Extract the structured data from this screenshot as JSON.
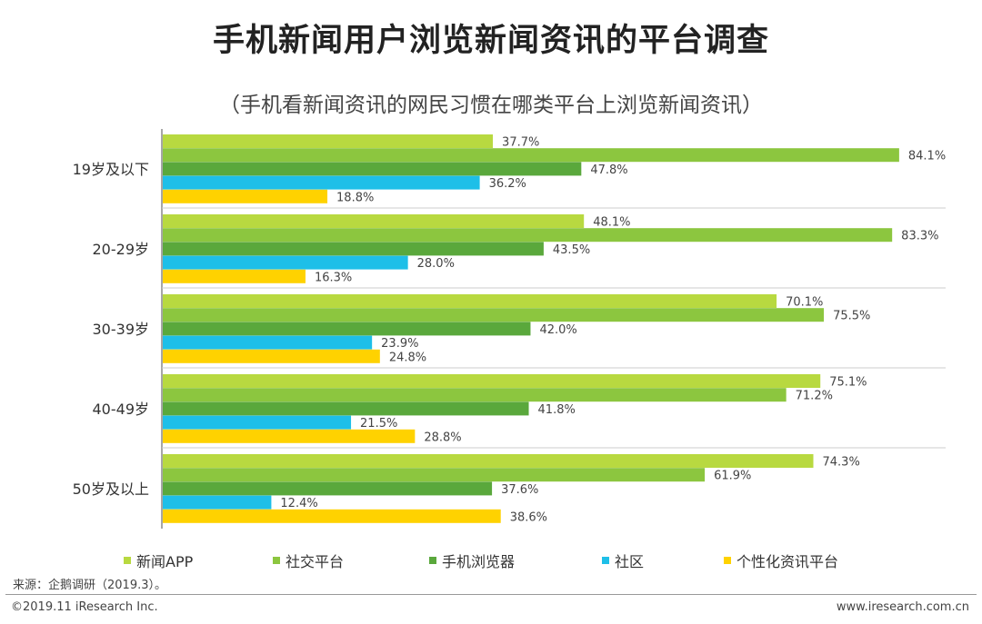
{
  "title": "手机新闻用户浏览新闻资讯的平台调查",
  "subtitle": "（手机看新闻资讯的网民习惯在哪类平台上浏览新闻资讯）",
  "colors": {
    "新闻APP": "#b8d940",
    "社交平台": "#8cc63f",
    "手机浏览器": "#5aa83c",
    "社区": "#1ebfe8",
    "个性化资讯平台": "#ffd200"
  },
  "chart_data": {
    "type": "bar",
    "orientation": "horizontal",
    "title": "手机新闻用户浏览新闻资讯的平台调查",
    "subtitle": "（手机看新闻资讯的网民习惯在哪类平台上浏览新闻资讯）",
    "categories": [
      "19岁及以下",
      "20-29岁",
      "30-39岁",
      "40-49岁",
      "50岁及以上"
    ],
    "series": [
      {
        "name": "新闻APP",
        "values": [
          37.7,
          48.1,
          70.1,
          75.1,
          74.3
        ]
      },
      {
        "name": "社交平台",
        "values": [
          84.1,
          83.3,
          75.5,
          71.2,
          61.9
        ]
      },
      {
        "name": "手机浏览器",
        "values": [
          47.8,
          43.5,
          42.0,
          41.8,
          37.6
        ]
      },
      {
        "name": "社区",
        "values": [
          36.2,
          28.0,
          23.9,
          21.5,
          12.4
        ]
      },
      {
        "name": "个性化资讯平台",
        "values": [
          18.8,
          16.3,
          24.8,
          28.8,
          38.6
        ]
      }
    ],
    "xlim": [
      0,
      100
    ],
    "value_suffix": "%",
    "grid": false,
    "legend_position": "bottom"
  },
  "legend": [
    {
      "label": "新闻APP"
    },
    {
      "label": "社交平台"
    },
    {
      "label": "手机浏览器"
    },
    {
      "label": "社区"
    },
    {
      "label": "个性化资讯平台"
    }
  ],
  "source": "来源：企鹅调研（2019.3）。",
  "footer": {
    "copyright": "©2019.11 iResearch Inc.",
    "website": "www.iresearch.com.cn"
  }
}
